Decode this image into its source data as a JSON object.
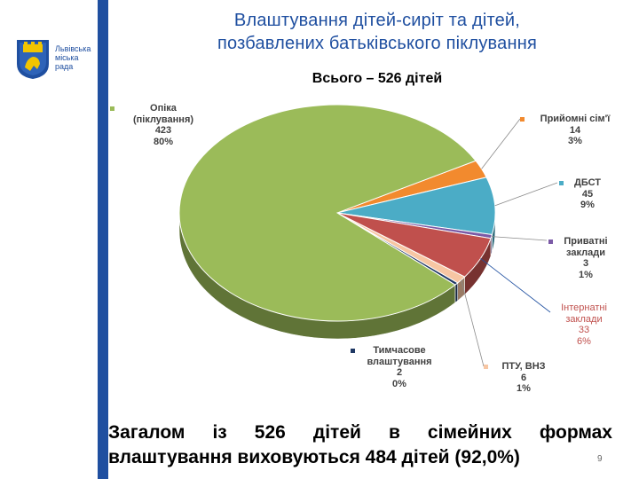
{
  "logo": {
    "line1": "Львівська",
    "line2": "міська",
    "line3": "рада"
  },
  "header": {
    "title_line1": "Влаштування дітей-сиріт та дітей,",
    "title_line2": "позбавлених батьківського піклування"
  },
  "chart_data": {
    "type": "pie",
    "subtitle": "Всього – 526 дітей",
    "total": 526,
    "slices": [
      {
        "name": "Прийомні сім'ї",
        "count": "14",
        "percent": "3%",
        "value": 14,
        "color": "#f28a2e"
      },
      {
        "name": "ДБСТ",
        "count": "45",
        "percent": "9%",
        "value": 45,
        "color": "#4bacc6"
      },
      {
        "name": "Приватні заклади",
        "count": "3",
        "percent": "1%",
        "value": 3,
        "color": "#7b5aa6"
      },
      {
        "name": "Інтернатні заклади",
        "count": "33",
        "percent": "6%",
        "value": 33,
        "color": "#c0504d"
      },
      {
        "name": "ПТУ, ВНЗ",
        "count": "6",
        "percent": "1%",
        "value": 6,
        "color": "#f7c6a3"
      },
      {
        "name": "Тимчасове влаштування",
        "count": "2",
        "percent": "0%",
        "value": 2,
        "color": "#1f3864"
      },
      {
        "name": "Опіка (піклування)",
        "count": "423",
        "percent": "80%",
        "value": 423,
        "color": "#9bbb59"
      }
    ],
    "labels": {
      "opika": [
        "Опіка",
        "(піклування)",
        "423",
        "80%"
      ],
      "pryiomni": [
        "Прийомні сім'ї",
        "14",
        "3%"
      ],
      "dbst": [
        "ДБСТ",
        "45",
        "9%"
      ],
      "pryvatni": [
        "Приватні",
        "заклади",
        "3",
        "1%"
      ],
      "internatni": [
        "Інтернатні",
        "заклади",
        "33",
        "6%"
      ],
      "ptu": [
        "ПТУ, ВНЗ",
        "6",
        "1%"
      ],
      "tymchasove": [
        "Тимчасове",
        "влаштування",
        "2",
        "0%"
      ]
    }
  },
  "footer": {
    "line1": "Загалом із 526 дітей в сімейних формах",
    "line2": "влаштування виховуються 484 дітей (92,0%)"
  },
  "page_number": "9"
}
